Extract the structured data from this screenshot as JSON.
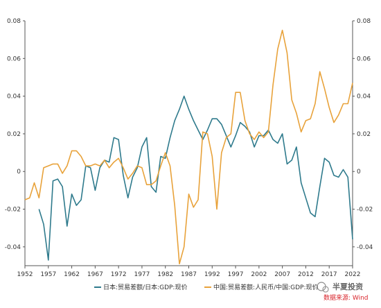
{
  "chart_data": {
    "type": "line",
    "xlim": [
      1952,
      2022
    ],
    "ylim": [
      -0.05,
      0.08
    ],
    "x_ticks": [
      1952,
      1957,
      1962,
      1967,
      1972,
      1977,
      1982,
      1987,
      1992,
      1997,
      2002,
      2007,
      2012,
      2017,
      2022
    ],
    "y_ticks": [
      -0.04,
      -0.02,
      0,
      0.02,
      0.04,
      0.06,
      0.08
    ],
    "y_tick_labels": [
      "-0.04",
      "-0.02",
      "0",
      "0.02",
      "0.04",
      "0.06",
      "0.08"
    ],
    "grid": false,
    "legend_position": "bottom",
    "series": [
      {
        "name": "日本:贸易差额/日本:GDP:现价",
        "color": "#2e7a8c",
        "x": [
          1955,
          1956,
          1957,
          1958,
          1959,
          1960,
          1961,
          1962,
          1963,
          1964,
          1965,
          1966,
          1967,
          1968,
          1969,
          1970,
          1971,
          1972,
          1973,
          1974,
          1975,
          1976,
          1977,
          1978,
          1979,
          1980,
          1981,
          1982,
          1983,
          1984,
          1985,
          1986,
          1987,
          1988,
          1989,
          1990,
          1991,
          1992,
          1993,
          1994,
          1995,
          1996,
          1997,
          1998,
          1999,
          2000,
          2001,
          2002,
          2003,
          2004,
          2005,
          2006,
          2007,
          2008,
          2009,
          2010,
          2011,
          2012,
          2013,
          2014,
          2015,
          2016,
          2017,
          2018,
          2019,
          2020,
          2021,
          2022
        ],
        "values": [
          -0.02,
          -0.028,
          -0.047,
          -0.005,
          -0.004,
          -0.008,
          -0.029,
          -0.012,
          -0.018,
          -0.015,
          0.003,
          0.002,
          -0.01,
          0.002,
          0.006,
          0.005,
          0.018,
          0.017,
          -0.002,
          -0.014,
          -0.003,
          0.002,
          0.013,
          0.018,
          -0.008,
          -0.011,
          0.008,
          0.007,
          0.018,
          0.027,
          0.033,
          0.04,
          0.033,
          0.027,
          0.022,
          0.017,
          0.022,
          0.028,
          0.028,
          0.025,
          0.019,
          0.013,
          0.019,
          0.026,
          0.024,
          0.021,
          0.013,
          0.019,
          0.019,
          0.022,
          0.017,
          0.015,
          0.02,
          0.004,
          0.006,
          0.013,
          -0.006,
          -0.014,
          -0.022,
          -0.024,
          -0.008,
          0.007,
          0.005,
          -0.002,
          -0.003,
          0.001,
          -0.003,
          -0.036
        ]
      },
      {
        "name": "中国:贸易差额:人民币/中国:GDP:现价",
        "color": "#e8a23a",
        "x": [
          1952,
          1953,
          1954,
          1955,
          1956,
          1957,
          1958,
          1959,
          1960,
          1961,
          1962,
          1963,
          1964,
          1965,
          1966,
          1967,
          1968,
          1969,
          1970,
          1971,
          1972,
          1973,
          1974,
          1975,
          1976,
          1977,
          1978,
          1979,
          1980,
          1981,
          1982,
          1983,
          1984,
          1985,
          1986,
          1987,
          1988,
          1989,
          1990,
          1991,
          1992,
          1993,
          1994,
          1995,
          1996,
          1997,
          1998,
          1999,
          2000,
          2001,
          2002,
          2003,
          2004,
          2005,
          2006,
          2007,
          2008,
          2009,
          2010,
          2011,
          2012,
          2013,
          2014,
          2015,
          2016,
          2017,
          2018,
          2019,
          2020,
          2021,
          2022
        ],
        "values": [
          -0.015,
          -0.014,
          -0.006,
          -0.014,
          0.002,
          0.003,
          0.004,
          0.004,
          -0.001,
          0.003,
          0.011,
          0.011,
          0.008,
          0.003,
          0.003,
          0.004,
          0.003,
          0.006,
          0.002,
          0.005,
          0.007,
          0.002,
          -0.004,
          -0.001,
          0.003,
          0.002,
          -0.007,
          -0.007,
          -0.005,
          0.003,
          0.01,
          0.003,
          -0.018,
          -0.049,
          -0.04,
          -0.012,
          -0.019,
          -0.015,
          0.021,
          0.02,
          0.008,
          -0.02,
          0.01,
          0.018,
          0.02,
          0.042,
          0.042,
          0.027,
          0.02,
          0.017,
          0.021,
          0.018,
          0.021,
          0.046,
          0.065,
          0.075,
          0.063,
          0.038,
          0.031,
          0.021,
          0.027,
          0.028,
          0.036,
          0.053,
          0.044,
          0.034,
          0.026,
          0.03,
          0.036,
          0.036,
          0.047
        ]
      }
    ]
  },
  "brand_text": "半夏投资",
  "source_text": "数据来源: Wind"
}
